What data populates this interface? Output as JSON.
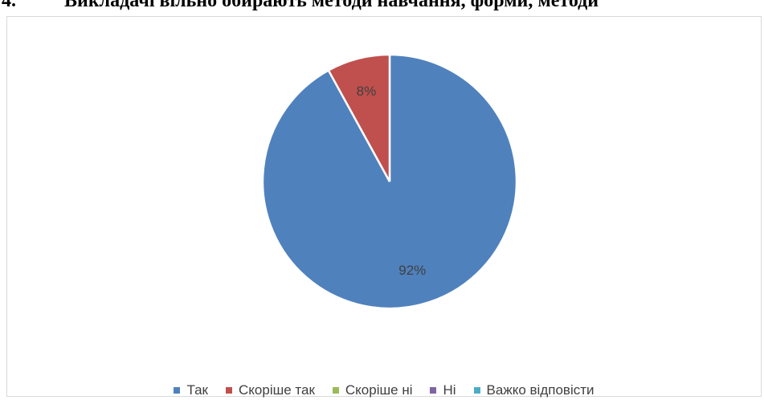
{
  "heading": {
    "number": "4.",
    "text": "Викладачі вільно обирають методи навчання, форми, методи"
  },
  "chart_data": {
    "type": "pie",
    "categories": [
      "Так",
      "Скоріше так",
      "Скоріше ні",
      "Ні",
      "Важко відповісти"
    ],
    "values": [
      92,
      8,
      0,
      0,
      0
    ],
    "data_labels": [
      "92%",
      "8%",
      "",
      "",
      ""
    ],
    "colors": [
      "#4F81BD",
      "#C0504D",
      "#9BBB59",
      "#8064A2",
      "#4BACC6"
    ],
    "legend_position": "bottom"
  }
}
